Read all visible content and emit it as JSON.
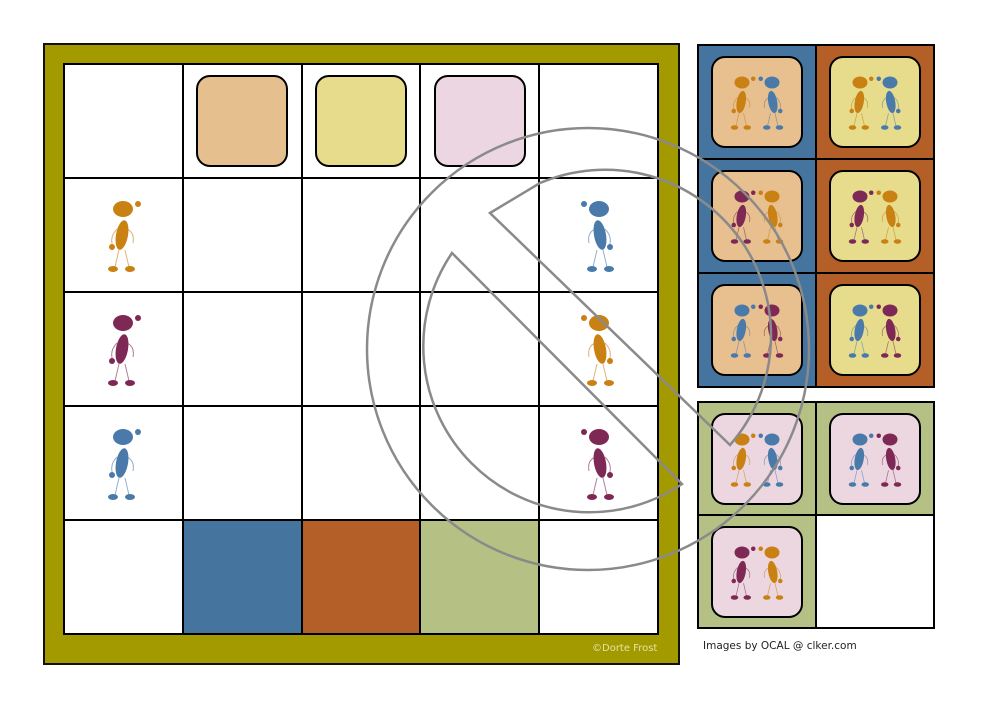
{
  "colors": {
    "frame": "#a39a00",
    "orange": "#c98114",
    "blue": "#4a7aaa",
    "purple": "#7e2955",
    "watermark": "#8a8a8a"
  },
  "board": {
    "top_swatches": [
      "#e6bf8e",
      "#e6dc8c",
      "#ebd6e1"
    ],
    "bottom_swatches": [
      "#45759f",
      "#b35f27",
      "#b5c184"
    ],
    "left_figures": [
      "orange",
      "purple",
      "blue"
    ],
    "right_figures": [
      "blue",
      "orange",
      "purple"
    ],
    "copyright": "©Dorte Frost"
  },
  "panel1": {
    "backgrounds": [
      "#45759f",
      "#b35f27"
    ],
    "card_colors": [
      "#e8bf8e",
      "#e6dc8c"
    ],
    "rows": [
      [
        "orange",
        "blue"
      ],
      [
        "purple",
        "orange"
      ],
      [
        "blue",
        "purple"
      ]
    ]
  },
  "panel2": {
    "background": "#b5c184",
    "card_color": "#ecd7e0",
    "cards": [
      [
        "orange",
        "blue"
      ],
      [
        "blue",
        "purple"
      ],
      [
        "purple",
        "orange"
      ]
    ]
  },
  "credit": "Images by OCAL @ clker.com"
}
